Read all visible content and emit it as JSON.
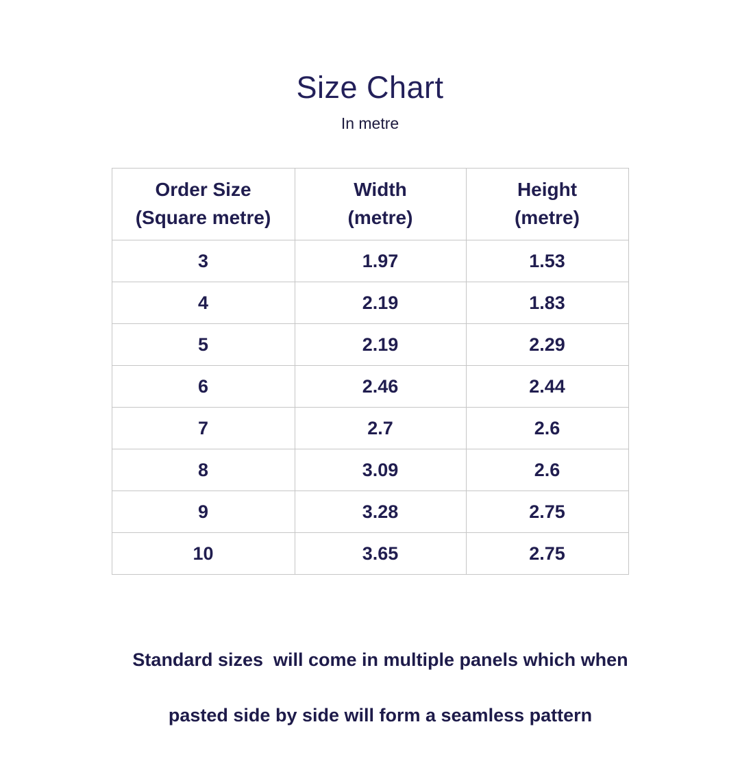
{
  "page": {
    "background_color": "#ffffff",
    "text_color": "#201d4f",
    "border_color": "#c6c6c6"
  },
  "header": {
    "title": "Size Chart",
    "subtitle": "In metre"
  },
  "table": {
    "headers": [
      "Order Size\n(Square metre)",
      "Width\n(metre)",
      "Height\n(metre)"
    ],
    "rows": [
      {
        "order_size": "3",
        "width": "1.97",
        "height": "1.53"
      },
      {
        "order_size": "4",
        "width": "2.19",
        "height": "1.83"
      },
      {
        "order_size": "5",
        "width": "2.19",
        "height": "2.29"
      },
      {
        "order_size": "6",
        "width": "2.46",
        "height": "2.44"
      },
      {
        "order_size": "7",
        "width": "2.7",
        "height": "2.6"
      },
      {
        "order_size": "8",
        "width": "3.09",
        "height": "2.6"
      },
      {
        "order_size": "9",
        "width": "3.28",
        "height": "2.75"
      },
      {
        "order_size": "10",
        "width": "3.65",
        "height": "2.75"
      }
    ]
  },
  "footer": {
    "line1": "Standard sizes  will come in multiple panels which when",
    "line2": "pasted side by side will form a seamless pattern"
  }
}
